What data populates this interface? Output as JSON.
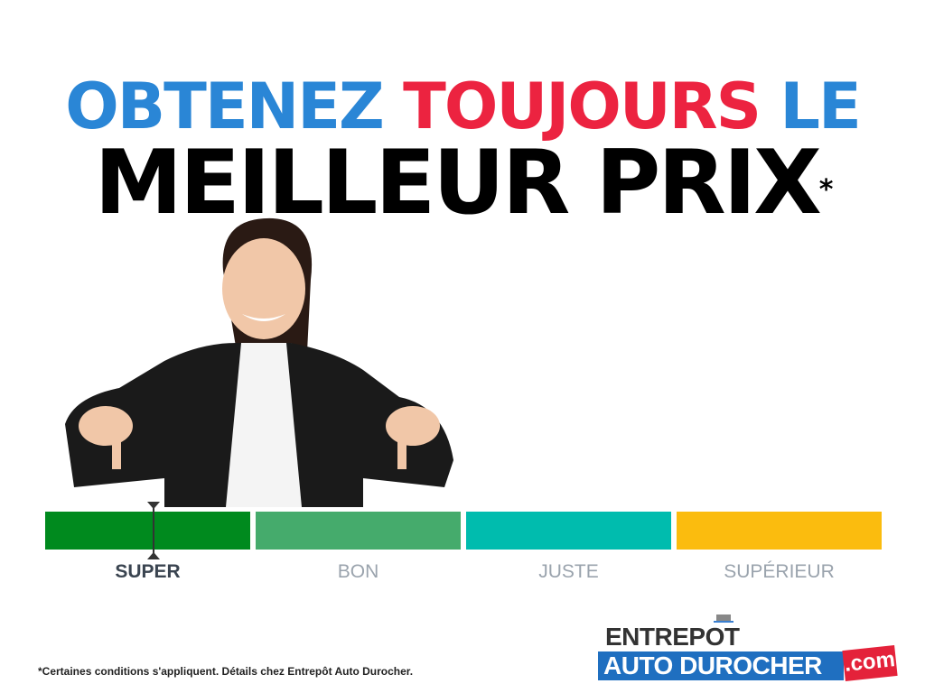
{
  "headline": {
    "line1_part1": "OBTENEZ ",
    "line1_part2": "TOUJOURS",
    "line1_part3": " LE",
    "line2": "MEILLEUR PRIX",
    "asterisk": "*",
    "colors": {
      "blue": "#2a86d6",
      "red": "#ec2340",
      "black": "#000000"
    }
  },
  "price_scale": {
    "segments": [
      {
        "label": "SUPER",
        "color": "#008a1e",
        "active": true
      },
      {
        "label": "BON",
        "color": "#45ab6c",
        "active": false
      },
      {
        "label": "JUSTE",
        "color": "#00bcae",
        "active": false
      },
      {
        "label": "SUPÉRIEUR",
        "color": "#fbbc0e",
        "active": false
      }
    ],
    "marker_position_fraction": 0.13
  },
  "footnote": "*Certaines conditions s'appliquent. Détails chez Entrepôt Auto Durocher.",
  "logo": {
    "line1": "ENTREPOT",
    "line2": "AUTO DUROCHER",
    "suffix": ".com"
  }
}
